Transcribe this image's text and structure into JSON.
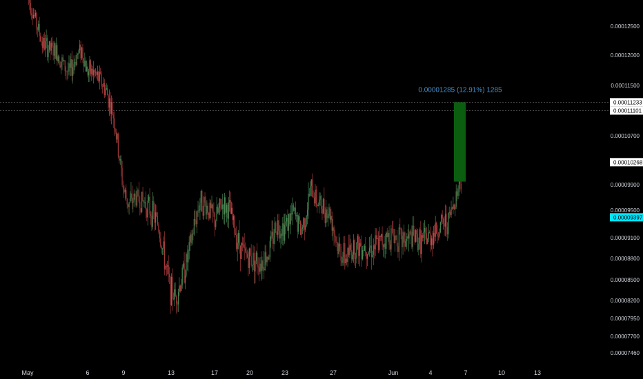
{
  "chart_data": {
    "type": "candlestick",
    "x_tick_labels": [
      "May",
      "6",
      "9",
      "13",
      "17",
      "20",
      "23",
      "27",
      "Jun",
      "4",
      "7",
      "10",
      "13"
    ],
    "y_tick_labels": [
      "0.00012500",
      "0.00012000",
      "0.00011500",
      "0.00010700",
      "0.00009900",
      "0.00009500",
      "0.00009100",
      "0.00008800",
      "0.00008500",
      "0.00008200",
      "0.00007950",
      "0.00007700",
      "0.00007460"
    ],
    "y_ticks": [
      0.000125,
      0.00012,
      0.000115,
      0.000107,
      9.9e-05,
      9.5e-05,
      9.1e-05,
      8.8e-05,
      8.5e-05,
      8.2e-05,
      7.95e-05,
      7.7e-05,
      7.46e-05
    ],
    "price_labels": [
      {
        "text": "0.00011233",
        "value": 0.00011233,
        "style": "white",
        "dashed_line": true
      },
      {
        "text": "0.00011101",
        "value": 0.00011101,
        "style": "white",
        "dashed_line": true
      },
      {
        "text": "0.00010268",
        "value": 0.00010268,
        "style": "white",
        "dashed_line": false
      },
      {
        "text": "0.00009397",
        "value": 9.397e-05,
        "style": "cyan",
        "dashed_line": false
      }
    ],
    "measure": {
      "text": "0.00001285 (12.91%) 1285",
      "from": 9.95e-05,
      "to": 0.00011233,
      "color": "#0b5e0f"
    },
    "series_path": [
      [
        0.0,
        0.0001305
      ],
      [
        0.6,
        0.000122
      ],
      [
        0.9,
        0.000121
      ],
      [
        1.2,
        0.0001205
      ],
      [
        1.5,
        0.000118
      ],
      [
        1.7,
        0.000117
      ],
      [
        2.0,
        0.00012
      ],
      [
        2.2,
        0.000121
      ],
      [
        2.4,
        0.0001175
      ],
      [
        2.7,
        0.000117
      ],
      [
        3.0,
        0.0001155
      ],
      [
        3.2,
        0.000114
      ],
      [
        3.5,
        0.00011
      ],
      [
        3.7,
        0.000104
      ],
      [
        3.9,
        9.8e-05
      ],
      [
        4.1,
        9.6e-05
      ],
      [
        4.4,
        9.7e-05
      ],
      [
        4.8,
        9.6e-05
      ],
      [
        5.0,
        9.5e-05
      ],
      [
        5.3,
        9.3e-05
      ],
      [
        5.6,
        8.7e-05
      ],
      [
        5.8,
        8.35e-05
      ],
      [
        6.0,
        8.25e-05
      ],
      [
        6.2,
        8.45e-05
      ],
      [
        6.5,
        8.8e-05
      ],
      [
        6.8,
        9.35e-05
      ],
      [
        7.0,
        9.65e-05
      ],
      [
        7.3,
        9.55e-05
      ],
      [
        7.6,
        9.35e-05
      ],
      [
        7.9,
        9.6e-05
      ],
      [
        8.2,
        9.5e-05
      ],
      [
        8.5,
        9.1e-05
      ],
      [
        8.8,
        8.85e-05
      ],
      [
        9.1,
        8.8e-05
      ],
      [
        9.5,
        8.75e-05
      ],
      [
        9.8,
        8.9e-05
      ],
      [
        10.1,
        9.3e-05
      ],
      [
        10.4,
        9.25e-05
      ],
      [
        10.8,
        9.45e-05
      ],
      [
        11.1,
        9.2e-05
      ],
      [
        11.3,
        9.45e-05
      ],
      [
        11.5,
        9.85e-05
      ],
      [
        11.8,
        9.6e-05
      ],
      [
        12.0,
        9.55e-05
      ],
      [
        12.3,
        9.45e-05
      ],
      [
        12.6,
        8.95e-05
      ],
      [
        12.9,
        8.8e-05
      ],
      [
        13.2,
        8.95e-05
      ],
      [
        13.6,
        9e-05
      ],
      [
        14.0,
        8.95e-05
      ],
      [
        14.4,
        9.05e-05
      ],
      [
        14.8,
        9.15e-05
      ],
      [
        15.2,
        9.05e-05
      ],
      [
        15.6,
        9.1e-05
      ],
      [
        16.0,
        9.05e-05
      ],
      [
        16.3,
        9.1e-05
      ],
      [
        16.7,
        9.25e-05
      ],
      [
        17.1,
        9.35e-05
      ],
      [
        17.4,
        9.75e-05
      ],
      [
        17.6,
        0.0001
      ]
    ]
  }
}
